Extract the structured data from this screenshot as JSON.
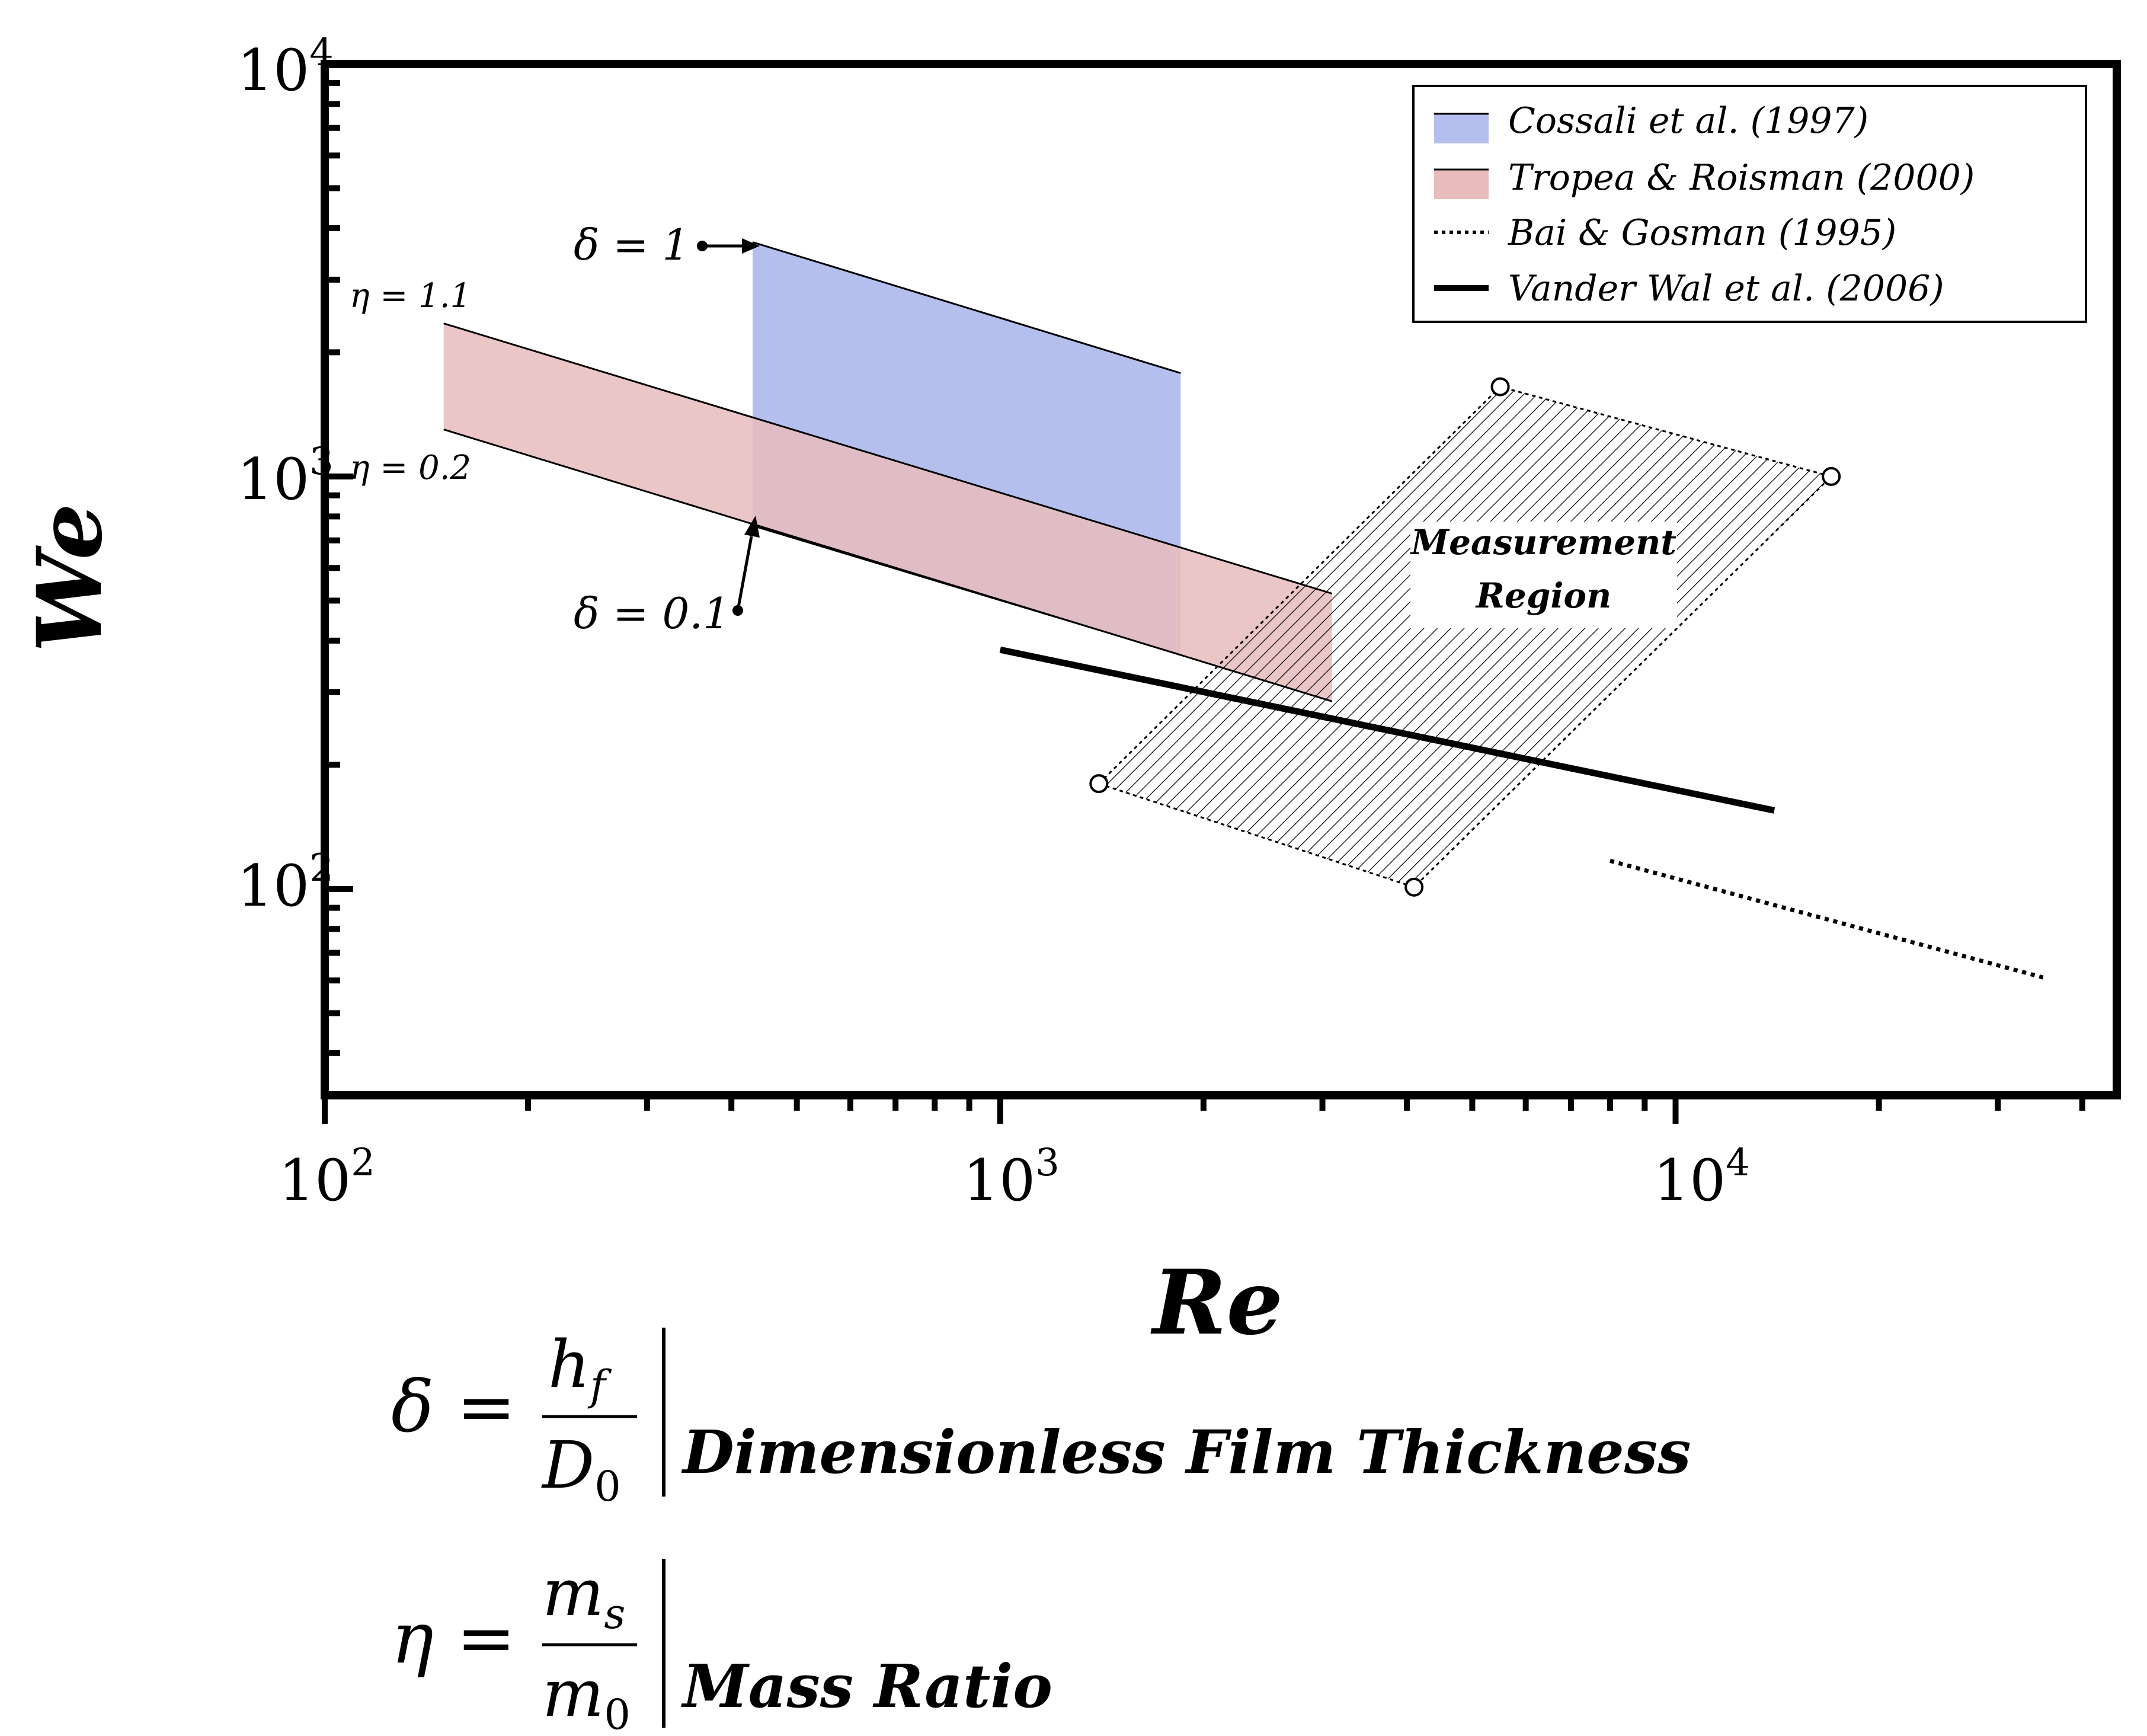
{
  "chart_data": {
    "type": "line",
    "title": "",
    "xlabel": "Re",
    "ylabel": "We",
    "xscale": "log",
    "yscale": "log",
    "xlim": [
      100,
      45000
    ],
    "ylim": [
      31.6,
      10000
    ],
    "x_ticks": [
      "10",
      "10",
      "10"
    ],
    "x_tick_exps": [
      "2",
      "3",
      "4"
    ],
    "y_ticks": [
      "10",
      "10",
      "10"
    ],
    "y_tick_exps": [
      "2",
      "3",
      "4"
    ],
    "colors": {
      "cossali_fill": "#b4bfee",
      "tropea_fill": "#e8bcbc",
      "overlap_fill": "#b799b5",
      "line": "#000000"
    },
    "series": [
      {
        "name": "Cossali et al. (1997)",
        "kind": "band",
        "upper": [
          {
            "x": 430,
            "y": 3700
          },
          {
            "x": 1850,
            "y": 1780
          }
        ],
        "lower": [
          {
            "x": 430,
            "y": 760
          },
          {
            "x": 1850,
            "y": 370
          }
        ]
      },
      {
        "name": "Tropea & Roisman (2000)",
        "kind": "band",
        "upper": [
          {
            "x": 150,
            "y": 2350
          },
          {
            "x": 3100,
            "y": 520
          }
        ],
        "lower": [
          {
            "x": 150,
            "y": 1300
          },
          {
            "x": 3100,
            "y": 285
          }
        ]
      },
      {
        "name": "Bai & Gosman (1995)",
        "kind": "dotted-line",
        "points": [
          {
            "x": 8000,
            "y": 117
          },
          {
            "x": 35000,
            "y": 61
          }
        ]
      },
      {
        "name": "Vander Wal et al. (2006)",
        "kind": "thick-line",
        "points": [
          {
            "x": 1000,
            "y": 380
          },
          {
            "x": 14000,
            "y": 155
          }
        ]
      },
      {
        "name": "Measurement Region",
        "kind": "hatched-polygon",
        "points": [
          {
            "x": 1400,
            "y": 180
          },
          {
            "x": 5500,
            "y": 1650
          },
          {
            "x": 17000,
            "y": 1000
          },
          {
            "x": 4100,
            "y": 101
          }
        ]
      }
    ],
    "legend": {
      "placement": "top-right",
      "entries": [
        "Cossali et al. (1997)",
        "Tropea & Roisman (2000)",
        "Bai & Gosman (1995)",
        "Vander Wal et al. (2006)"
      ]
    },
    "annotations": {
      "delta_1": "δ = 1",
      "delta_01": "δ = 0.1",
      "eta_11": "η = 1.1",
      "eta_02": "η = 0.2",
      "region_line1": "Measurement",
      "region_line2": "Region"
    }
  },
  "definitions": [
    {
      "symbol": "δ",
      "numerator": "h",
      "numerator_sub": "f",
      "denominator": "D",
      "denominator_sub": "0",
      "description": "Dimensionless Film Thickness"
    },
    {
      "symbol": "η",
      "numerator": "m",
      "numerator_sub": "s",
      "denominator": "m",
      "denominator_sub": "0",
      "description": "Mass Ratio"
    }
  ]
}
